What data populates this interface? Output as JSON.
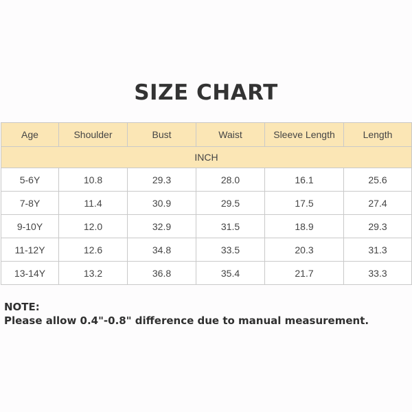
{
  "title": "SIZE CHART",
  "table": {
    "columns": [
      "Age",
      "Shoulder",
      "Bust",
      "Waist",
      "Sleeve Length",
      "Length"
    ],
    "unit": "INCH",
    "rows": [
      [
        "5-6Y",
        "10.8",
        "29.3",
        "28.0",
        "16.1",
        "25.6"
      ],
      [
        "7-8Y",
        "11.4",
        "30.9",
        "29.5",
        "17.5",
        "27.4"
      ],
      [
        "9-10Y",
        "12.0",
        "32.9",
        "31.5",
        "18.9",
        "29.3"
      ],
      [
        "11-12Y",
        "12.6",
        "34.8",
        "33.5",
        "20.3",
        "31.3"
      ],
      [
        "13-14Y",
        "13.2",
        "36.8",
        "35.4",
        "21.7",
        "33.3"
      ]
    ]
  },
  "note": {
    "heading": "NOTE:",
    "text": "Please allow 0.4\"-0.8\" difference due to manual measurement."
  },
  "colors": {
    "header_background": "#fbe6b5",
    "border": "#c9c9c9",
    "text": "#444444"
  }
}
